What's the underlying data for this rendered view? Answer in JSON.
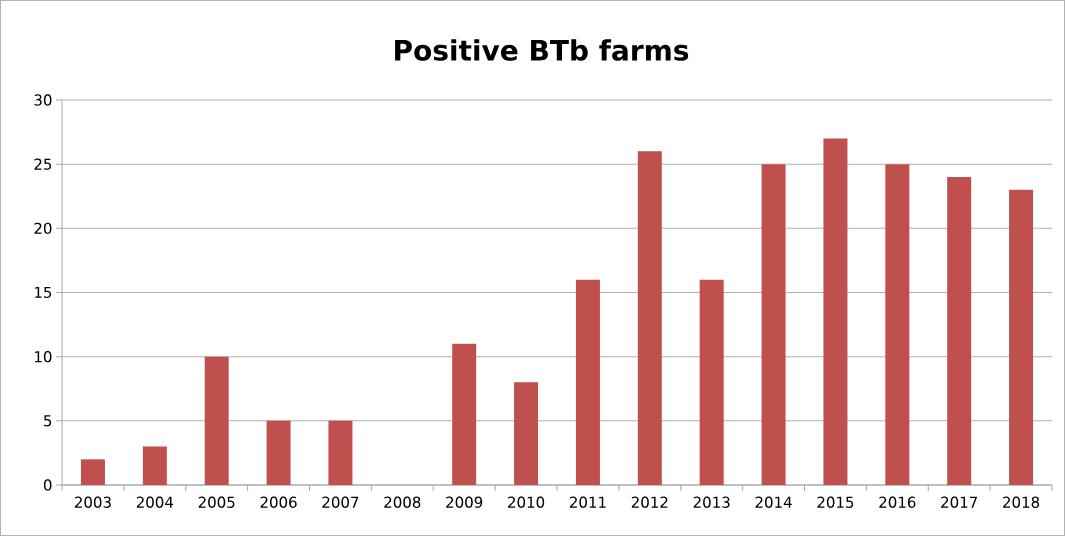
{
  "chart_data": {
    "type": "bar",
    "title": "Positive BTb farms",
    "categories": [
      "2003",
      "2004",
      "2005",
      "2006",
      "2007",
      "2008",
      "2009",
      "2010",
      "2011",
      "2012",
      "2013",
      "2014",
      "2015",
      "2016",
      "2017",
      "2018"
    ],
    "values": [
      2,
      3,
      10,
      5,
      5,
      0,
      11,
      8,
      16,
      26,
      16,
      25,
      27,
      25,
      24,
      23
    ],
    "color": "#c0504d",
    "ylim": [
      0,
      30
    ],
    "yticks": [
      0,
      5,
      10,
      15,
      20,
      25,
      30
    ],
    "grid": "y"
  }
}
